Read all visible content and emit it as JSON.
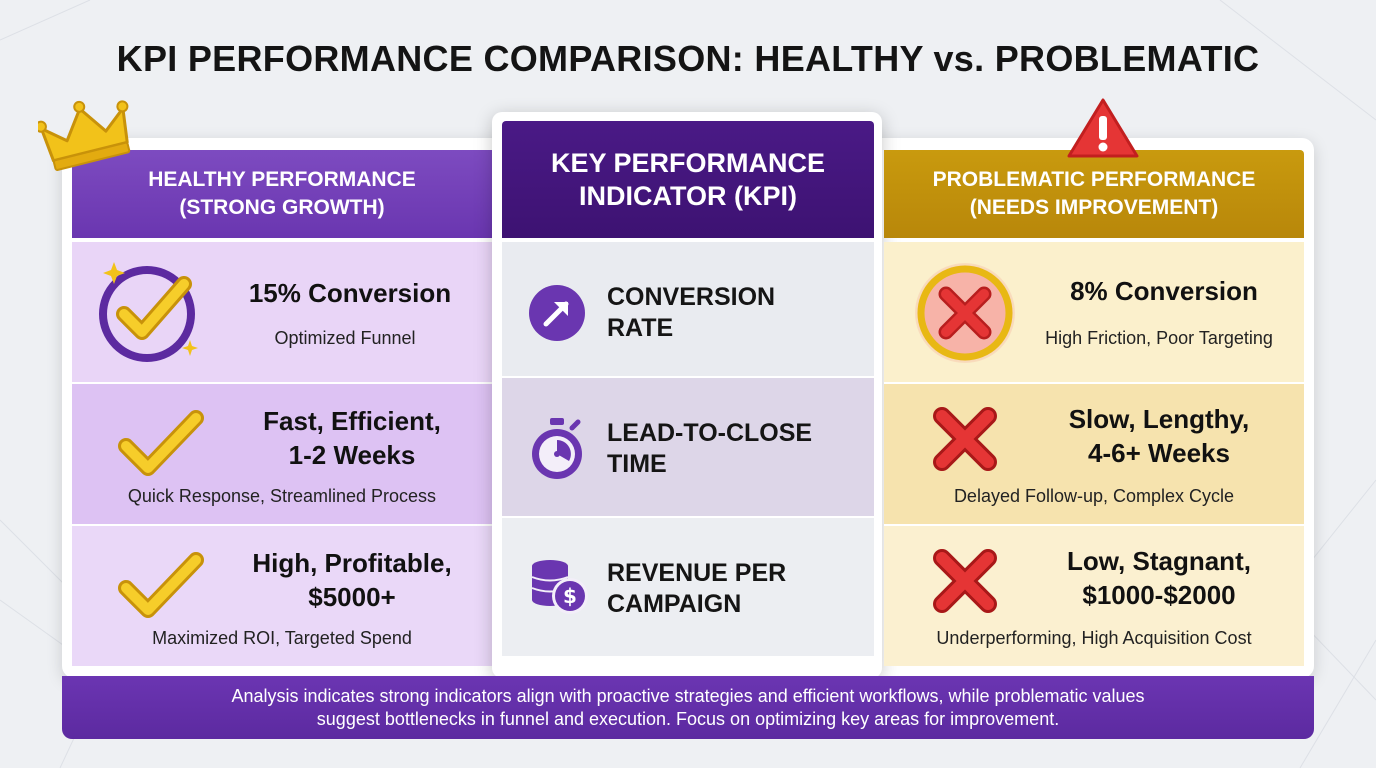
{
  "title": "KPI PERFORMANCE COMPARISON: HEALTHY vs. PROBLEMATIC",
  "columns": {
    "healthy": {
      "header_line1": "HEALTHY PERFORMANCE",
      "header_line2": "(STRONG GROWTH)",
      "rows": [
        {
          "value_line1": "15% Conversion",
          "value_line2": "",
          "note": "Optimized Funnel"
        },
        {
          "value_line1": "Fast, Efficient,",
          "value_line2": "1-2 Weeks",
          "note": "Quick Response, Streamlined Process"
        },
        {
          "value_line1": "High, Profitable,",
          "value_line2": "$5000+",
          "note": "Maximized ROI, Targeted Spend"
        }
      ]
    },
    "kpi": {
      "header_line1": "KEY PERFORMANCE",
      "header_line2": "INDICATOR (KPI)",
      "rows": [
        {
          "line1": "CONVERSION",
          "line2": "RATE",
          "icon": "arrow-up-right-icon"
        },
        {
          "line1": "LEAD-TO-CLOSE",
          "line2": "TIME",
          "icon": "stopwatch-icon"
        },
        {
          "line1": "REVENUE PER",
          "line2": "CAMPAIGN",
          "icon": "coins-dollar-icon"
        }
      ]
    },
    "problematic": {
      "header_line1": "PROBLEMATIC PERFORMANCE",
      "header_line2": "(NEEDS IMPROVEMENT)",
      "rows": [
        {
          "value_line1": "8% Conversion",
          "value_line2": "",
          "note": "High Friction, Poor Targeting"
        },
        {
          "value_line1": "Slow, Lengthy,",
          "value_line2": "4-6+ Weeks",
          "note": "Delayed Follow-up, Complex Cycle"
        },
        {
          "value_line1": "Low, Stagnant,",
          "value_line2": "$1000-$2000",
          "note": "Underperforming, High Acquisition Cost"
        }
      ]
    }
  },
  "footer": {
    "line1": "Analysis indicates strong indicators align with proactive strategies and efficient workflows, while problematic values",
    "line2": "suggest bottlenecks in funnel and execution. Focus on optimizing key areas for improvement."
  },
  "colors": {
    "healthy_header": "#7d4bc0",
    "kpi_header": "#4a1a86",
    "problematic_header": "#c99a0e",
    "check_gold": "#f2c21a",
    "cross_red": "#e02a2a",
    "footer": "#6b35b2"
  },
  "icons": {
    "crown": "crown-icon",
    "warning": "warning-icon",
    "check": "checkmark-icon",
    "cross": "cross-icon"
  }
}
